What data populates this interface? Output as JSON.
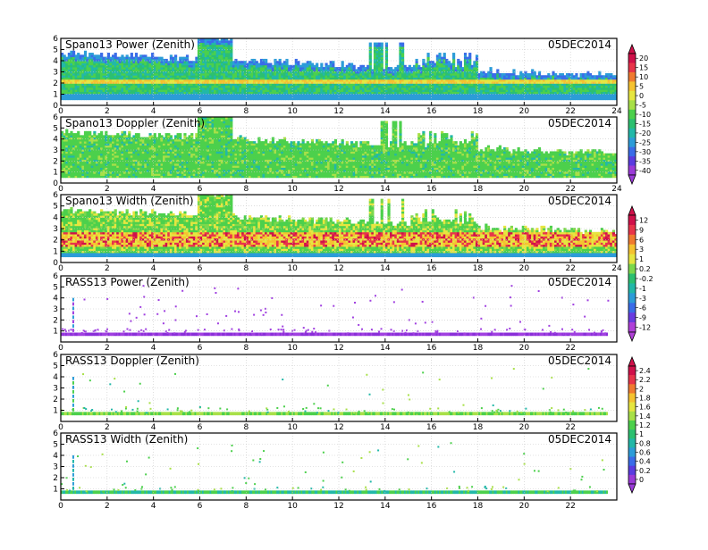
{
  "chart_data": [
    {
      "type": "heatmap",
      "title": "Spano13 Power (Zenith)",
      "date": "05DEC2014",
      "xlim": [
        0,
        24
      ],
      "ylim": [
        0,
        6
      ],
      "xticks": [
        "0",
        "2",
        "4",
        "6",
        "8",
        "10",
        "12",
        "14",
        "16",
        "18",
        "20",
        "22",
        "24"
      ],
      "yticks": [
        "0",
        "1",
        "2",
        "3",
        "4",
        "5",
        "6"
      ],
      "grid": true,
      "colorbar": "power",
      "texture": "power"
    },
    {
      "type": "heatmap",
      "title": "Spano13 Doppler (Zenith)",
      "date": "05DEC2014",
      "xlim": [
        0,
        24
      ],
      "ylim": [
        0,
        6
      ],
      "xticks": [
        "0",
        "2",
        "4",
        "6",
        "8",
        "10",
        "12",
        "14",
        "16",
        "18",
        "20",
        "22",
        "24"
      ],
      "yticks": [
        "0",
        "1",
        "2",
        "3",
        "4",
        "5",
        "6"
      ],
      "grid": true,
      "texture": "doppler"
    },
    {
      "type": "heatmap",
      "title": "Spano13 Width (Zenith)",
      "date": "05DEC2014",
      "xlim": [
        0,
        24
      ],
      "ylim": [
        0,
        6
      ],
      "xticks": [
        "0",
        "2",
        "4",
        "6",
        "8",
        "10",
        "12",
        "14",
        "16",
        "18",
        "20",
        "22",
        "24"
      ],
      "yticks": [
        "0",
        "1",
        "2",
        "3",
        "4",
        "5",
        "6"
      ],
      "grid": true,
      "colorbar": "width",
      "texture": "width"
    },
    {
      "type": "scatter",
      "title": "RASS13 Power (Zenith)",
      "date": "05DEC2014",
      "xlim": [
        0,
        24
      ],
      "ylim": [
        0,
        6
      ],
      "xticks": [
        "0",
        "2",
        "4",
        "6",
        "8",
        "10",
        "12",
        "14",
        "16",
        "18",
        "20",
        "22"
      ],
      "yticks": [
        "1",
        "2",
        "3",
        "4",
        "5",
        "6"
      ],
      "grid": true,
      "colorbar": "rass",
      "texture": "rass_power"
    },
    {
      "type": "scatter",
      "title": "RASS13 Doppler (Zenith)",
      "date": "05DEC2014",
      "xlim": [
        0,
        24
      ],
      "ylim": [
        0,
        6
      ],
      "xticks": [
        "0",
        "2",
        "4",
        "6",
        "8",
        "10",
        "12",
        "14",
        "16",
        "18",
        "20",
        "22"
      ],
      "yticks": [
        "1",
        "2",
        "3",
        "4",
        "5",
        "6"
      ],
      "grid": true,
      "texture": "rass_doppler"
    },
    {
      "type": "scatter",
      "title": "RASS13 Width (Zenith)",
      "date": "05DEC2014",
      "xlim": [
        0,
        24
      ],
      "ylim": [
        0,
        6
      ],
      "xticks": [
        "0",
        "2",
        "4",
        "6",
        "8",
        "10",
        "12",
        "14",
        "16",
        "18",
        "20",
        "22"
      ],
      "yticks": [
        "1",
        "2",
        "3",
        "4",
        "5",
        "6"
      ],
      "grid": true,
      "texture": "rass_width"
    }
  ],
  "colorbars": {
    "power": {
      "labels": [
        "20",
        "15",
        "10",
        "5",
        "0",
        "-5",
        "-10",
        "-15",
        "-20",
        "-25",
        "-30",
        "-35",
        "-40"
      ],
      "colors": [
        "#d0104a",
        "#e8344a",
        "#f07a30",
        "#f5c230",
        "#e6e640",
        "#a8e048",
        "#4cd04c",
        "#2cc070",
        "#22b8a8",
        "#2c9cd8",
        "#3a6ce8",
        "#5a3ce0",
        "#9a3ad8"
      ]
    },
    "width": {
      "labels": [
        "12",
        "9",
        "6",
        "3",
        "1",
        "0.2",
        "-0.2",
        "-1",
        "-3",
        "-6",
        "-9",
        "-12"
      ],
      "colors": [
        "#d0104a",
        "#e8344a",
        "#f07a30",
        "#f5c230",
        "#e6e640",
        "#7cd84c",
        "#2cc070",
        "#22b8a8",
        "#2c9cd8",
        "#3a6ce8",
        "#6a3ce0",
        "#b040d8"
      ]
    },
    "rass": {
      "labels": [
        "2.4",
        "2.2",
        "2",
        "1.8",
        "1.6",
        "1.4",
        "1.2",
        "1",
        "0.8",
        "0.6",
        "0.4",
        "0.2",
        "0"
      ],
      "colors": [
        "#d0104a",
        "#e8344a",
        "#f07a30",
        "#f5c230",
        "#e6e640",
        "#a8e048",
        "#4cd04c",
        "#2cc070",
        "#22b8a8",
        "#2c9cd8",
        "#3a6ce8",
        "#5a3ce0",
        "#9a3ad8"
      ]
    }
  },
  "colors": {
    "frame": "#000000",
    "grid": "#c8c8c8",
    "doppler_green": "#4cd04c",
    "rass_purple": "#a040e0"
  }
}
